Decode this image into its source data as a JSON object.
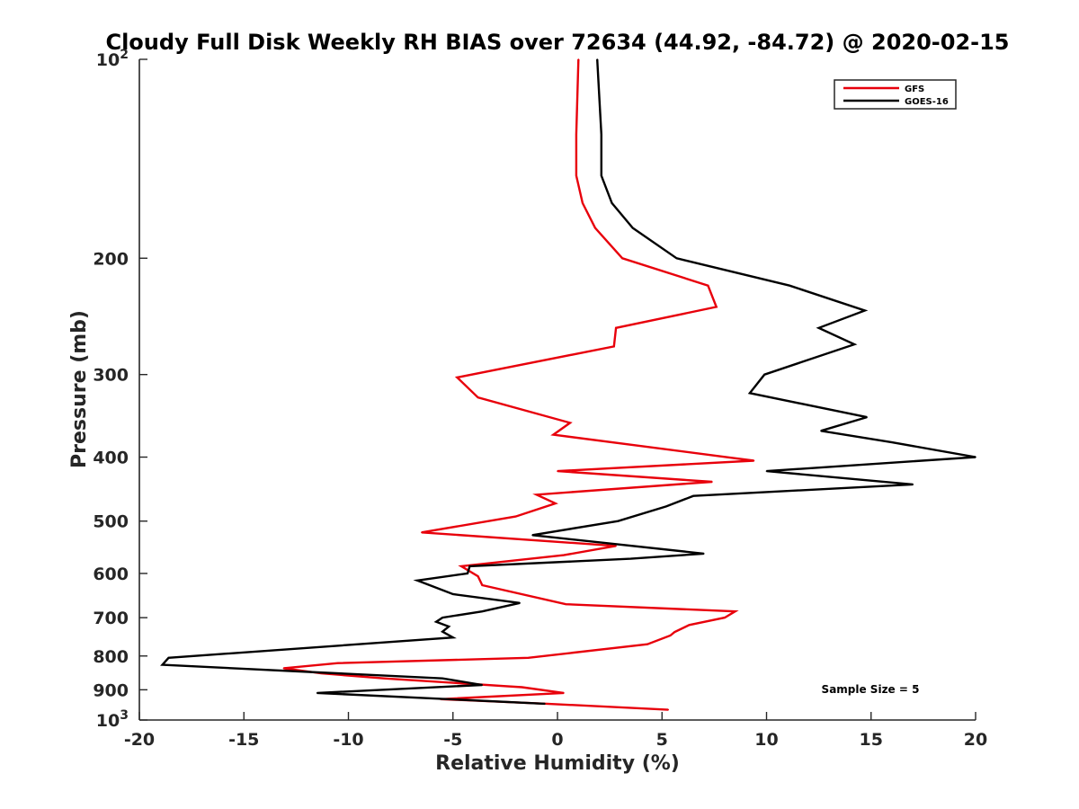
{
  "chart_data": {
    "type": "line",
    "title": "Cloudy Full Disk Weekly RH BIAS over 72634 (44.92, -84.72) @ 2020-02-15",
    "xlabel": "Relative Humidity (%)",
    "ylabel": "Pressure (mb)",
    "xlim": [
      -20,
      20
    ],
    "ylim": [
      100,
      1000
    ],
    "y_scale": "log",
    "y_reversed": true,
    "x_ticks": [
      "-20",
      "-15",
      "-10",
      "-5",
      "0",
      "5",
      "10",
      "15",
      "20"
    ],
    "y_ticks": [
      {
        "value": 100,
        "label": "10",
        "sup": "2"
      },
      {
        "value": 200,
        "label": "200",
        "sup": ""
      },
      {
        "value": 300,
        "label": "300",
        "sup": ""
      },
      {
        "value": 400,
        "label": "400",
        "sup": ""
      },
      {
        "value": 500,
        "label": "500",
        "sup": ""
      },
      {
        "value": 600,
        "label": "600",
        "sup": ""
      },
      {
        "value": 700,
        "label": "700",
        "sup": ""
      },
      {
        "value": 800,
        "label": "800",
        "sup": ""
      },
      {
        "value": 900,
        "label": "900",
        "sup": ""
      },
      {
        "value": 1000,
        "label": "10",
        "sup": "3"
      }
    ],
    "grid": false,
    "legend_position": "top-right",
    "annotation": "Sample Size = 5",
    "series": [
      {
        "name": "GFS",
        "color": "#e8000b",
        "points": [
          [
            1.0,
            100
          ],
          [
            0.9,
            130
          ],
          [
            0.9,
            150
          ],
          [
            1.2,
            165
          ],
          [
            1.8,
            180
          ],
          [
            3.1,
            200
          ],
          [
            7.2,
            220
          ],
          [
            7.6,
            237
          ],
          [
            2.8,
            255
          ],
          [
            2.7,
            272
          ],
          [
            -4.8,
            303
          ],
          [
            -3.8,
            325
          ],
          [
            0.6,
            355
          ],
          [
            -0.2,
            370
          ],
          [
            9.4,
            405
          ],
          [
            0.0,
            420
          ],
          [
            7.4,
            436
          ],
          [
            -1.0,
            456
          ],
          [
            -0.1,
            470
          ],
          [
            -2.0,
            492
          ],
          [
            -6.5,
            520
          ],
          [
            2.8,
            545
          ],
          [
            0.3,
            563
          ],
          [
            -4.6,
            585
          ],
          [
            -3.8,
            606
          ],
          [
            -3.6,
            625
          ],
          [
            0.4,
            668
          ],
          [
            8.5,
            685
          ],
          [
            8.0,
            700
          ],
          [
            6.3,
            718
          ],
          [
            5.6,
            736
          ],
          [
            5.4,
            745
          ],
          [
            4.3,
            768
          ],
          [
            -1.4,
            805
          ],
          [
            -10.5,
            820
          ],
          [
            -13.1,
            835
          ],
          [
            -11.3,
            850
          ],
          [
            -8.3,
            865
          ],
          [
            -1.7,
            892
          ],
          [
            0.3,
            910
          ],
          [
            -5.6,
            930
          ],
          [
            -0.5,
            945
          ],
          [
            5.3,
            965
          ]
        ]
      },
      {
        "name": "GOES-16",
        "color": "#000000",
        "points": [
          [
            1.9,
            100
          ],
          [
            2.1,
            130
          ],
          [
            2.1,
            150
          ],
          [
            2.6,
            165
          ],
          [
            3.6,
            180
          ],
          [
            5.7,
            200
          ],
          [
            11.1,
            220
          ],
          [
            14.7,
            240
          ],
          [
            12.5,
            255
          ],
          [
            14.2,
            270
          ],
          [
            9.9,
            300
          ],
          [
            9.2,
            320
          ],
          [
            14.8,
            348
          ],
          [
            12.6,
            365
          ],
          [
            16.0,
            380
          ],
          [
            20.0,
            400
          ],
          [
            10.0,
            420
          ],
          [
            17.0,
            440
          ],
          [
            6.5,
            458
          ],
          [
            5.2,
            475
          ],
          [
            2.9,
            500
          ],
          [
            -1.2,
            525
          ],
          [
            7.0,
            560
          ],
          [
            3.5,
            570
          ],
          [
            -4.2,
            585
          ],
          [
            -4.3,
            600
          ],
          [
            -6.7,
            615
          ],
          [
            -5.0,
            645
          ],
          [
            -1.8,
            665
          ],
          [
            -3.6,
            685
          ],
          [
            -5.5,
            700
          ],
          [
            -5.8,
            710
          ],
          [
            -5.2,
            722
          ],
          [
            -5.5,
            735
          ],
          [
            -5.0,
            750
          ],
          [
            -18.6,
            805
          ],
          [
            -18.9,
            825
          ],
          [
            -5.5,
            865
          ],
          [
            -3.6,
            885
          ],
          [
            -11.5,
            910
          ],
          [
            -0.6,
            945
          ]
        ]
      }
    ]
  }
}
